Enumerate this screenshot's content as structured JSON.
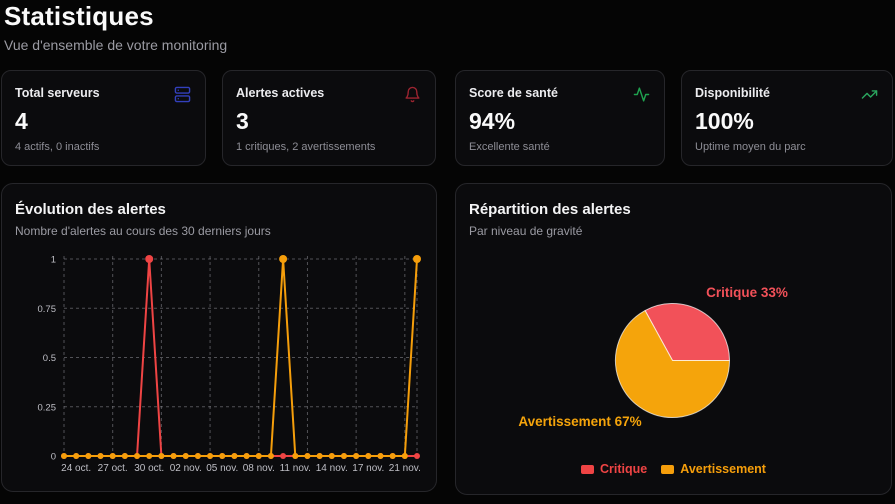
{
  "header": {
    "title": "Statistiques",
    "subtitle": "Vue d'ensemble de votre monitoring"
  },
  "stat_cards": [
    {
      "label": "Total serveurs",
      "value": "4",
      "description": "4 actifs, 0 inactifs",
      "icon": "server-icon",
      "icon_color": "#3340bd"
    },
    {
      "label": "Alertes actives",
      "value": "3",
      "description": "1 critiques, 2 avertissements",
      "icon": "bell-icon",
      "icon_color": "#9c2430"
    },
    {
      "label": "Score de santé",
      "value": "94%",
      "description": "Excellente santé",
      "icon": "activity-icon",
      "icon_color": "#1fa24f"
    },
    {
      "label": "Disponibilité",
      "value": "100%",
      "description": "Uptime moyen du parc",
      "icon": "trending-up-icon",
      "icon_color": "#2aa55e"
    }
  ],
  "line_panel": {
    "title": "Évolution des alertes",
    "subtitle": "Nombre d'alertes au cours des 30 derniers jours"
  },
  "pie_panel": {
    "title": "Répartition des alertes",
    "subtitle": "Par niveau de gravité",
    "legend": [
      {
        "label": "Critique",
        "color": "#ef4444"
      },
      {
        "label": "Avertissement",
        "color": "#f59e0b"
      }
    ]
  },
  "colors": {
    "critical": "#ef4444",
    "warning": "#f59e0b"
  },
  "chart_data": [
    {
      "type": "line",
      "title": "Évolution des alertes",
      "x_count": 30,
      "x_tick_labels": [
        {
          "index": 1,
          "label": "24 oct."
        },
        {
          "index": 4,
          "label": "27 oct."
        },
        {
          "index": 7,
          "label": "30 oct."
        },
        {
          "index": 10,
          "label": "02 nov."
        },
        {
          "index": 13,
          "label": "05 nov."
        },
        {
          "index": 16,
          "label": "08 nov."
        },
        {
          "index": 19,
          "label": "11 nov."
        },
        {
          "index": 22,
          "label": "14 nov."
        },
        {
          "index": 25,
          "label": "17 nov."
        },
        {
          "index": 28,
          "label": "21 nov."
        }
      ],
      "grid_x_indices": [
        0,
        4,
        8,
        12,
        16,
        20,
        24,
        28,
        29
      ],
      "y_ticks": [
        0,
        0.25,
        0.5,
        0.75,
        1
      ],
      "ylim": [
        0,
        1
      ],
      "grid": true,
      "legend_position": "none",
      "series": [
        {
          "name": "Critique",
          "color": "#ef4444",
          "values": [
            0,
            0,
            0,
            0,
            0,
            0,
            0,
            1,
            0,
            0,
            0,
            0,
            0,
            0,
            0,
            0,
            0,
            0,
            0,
            0,
            0,
            0,
            0,
            0,
            0,
            0,
            0,
            0,
            0,
            0
          ]
        },
        {
          "name": "Avertissement",
          "color": "#f59e0b",
          "values": [
            0,
            0,
            0,
            0,
            0,
            0,
            0,
            0,
            0,
            0,
            0,
            0,
            0,
            0,
            0,
            0,
            0,
            0,
            1,
            0,
            0,
            0,
            0,
            0,
            0,
            0,
            0,
            0,
            0,
            1
          ]
        }
      ]
    },
    {
      "type": "pie",
      "title": "Répartition des alertes",
      "start_angle_deg": 0,
      "direction": "counterclockwise",
      "legend_position": "bottom",
      "slices": [
        {
          "name": "Critique",
          "pct": 33,
          "label": "Critique 33%",
          "color": "#f25159"
        },
        {
          "name": "Avertissement",
          "pct": 67,
          "label": "Avertissement 67%",
          "color": "#f5a40b"
        }
      ]
    }
  ]
}
